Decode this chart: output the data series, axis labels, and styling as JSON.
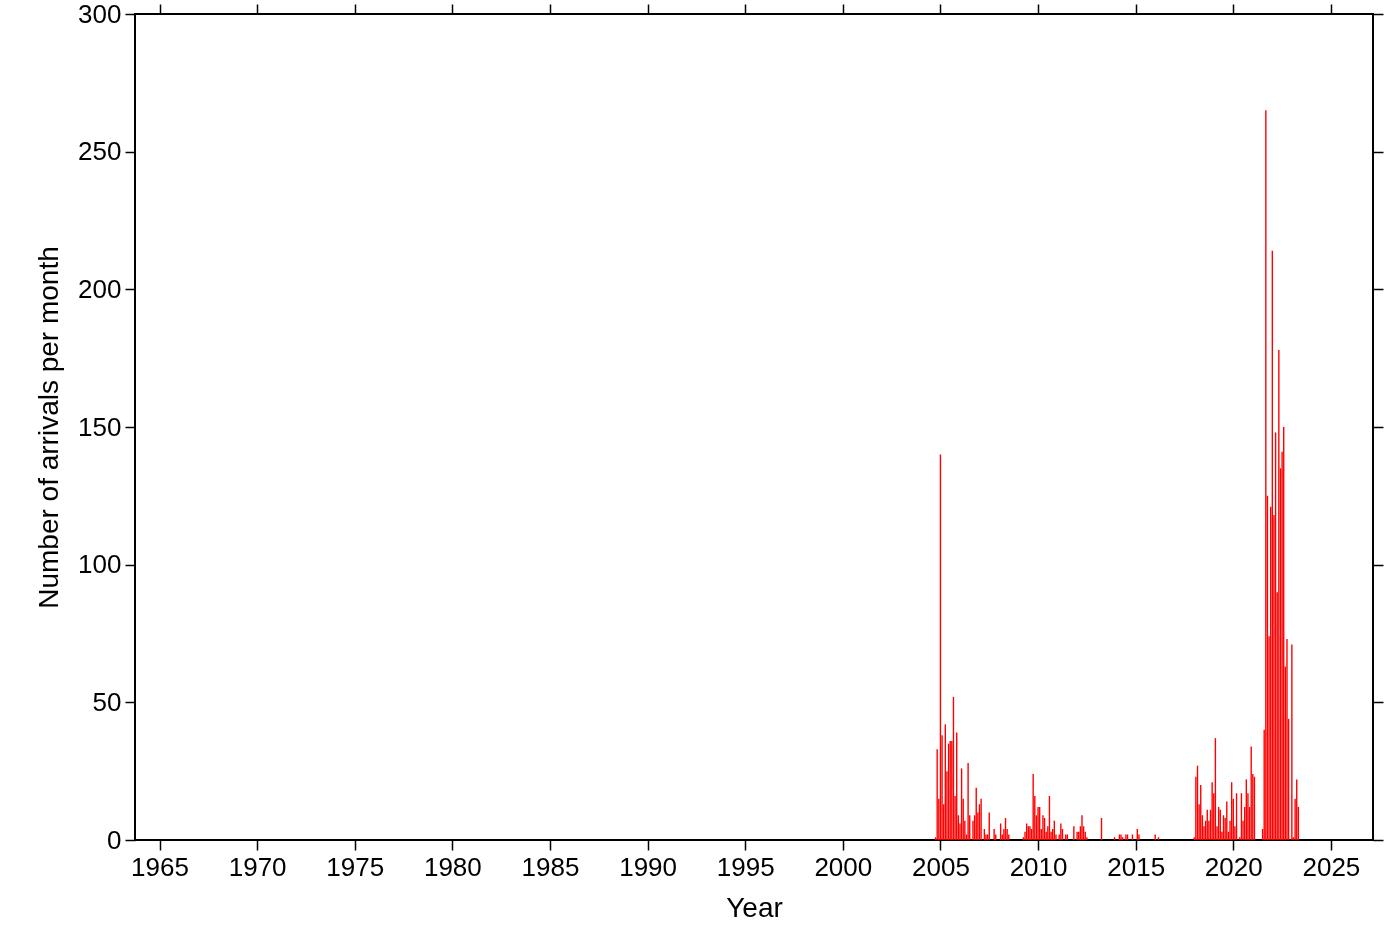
{
  "chart_data": {
    "type": "bar",
    "xlabel": "Year",
    "ylabel": "Number of arrivals per month",
    "color": "#ff0000",
    "x": [
      2004.75,
      2004.833,
      2004.917,
      2005.0,
      2005.083,
      2005.167,
      2005.25,
      2005.333,
      2005.417,
      2005.5,
      2005.583,
      2005.667,
      2005.75,
      2005.833,
      2005.917,
      2006.0,
      2006.083,
      2006.167,
      2006.25,
      2006.333,
      2006.417,
      2006.5,
      2006.667,
      2006.75,
      2006.833,
      2006.917,
      2007.0,
      2007.083,
      2007.25,
      2007.333,
      2007.417,
      2007.5,
      2007.75,
      2007.833,
      2008.083,
      2008.167,
      2008.25,
      2008.333,
      2008.417,
      2008.5,
      2009.25,
      2009.333,
      2009.417,
      2009.5,
      2009.583,
      2009.667,
      2009.75,
      2009.833,
      2009.917,
      2010.0,
      2010.083,
      2010.167,
      2010.25,
      2010.333,
      2010.417,
      2010.5,
      2010.583,
      2010.667,
      2010.75,
      2010.833,
      2010.917,
      2011.083,
      2011.167,
      2011.25,
      2011.417,
      2011.5,
      2011.833,
      2012.0,
      2012.083,
      2012.167,
      2012.25,
      2012.333,
      2012.417,
      2012.5,
      2013.25,
      2013.917,
      2014.167,
      2014.25,
      2014.333,
      2014.5,
      2014.583,
      2014.833,
      2015.083,
      2015.167,
      2016.0,
      2016.167,
      2018.0,
      2018.083,
      2018.167,
      2018.25,
      2018.333,
      2018.417,
      2018.5,
      2018.583,
      2018.667,
      2018.75,
      2018.833,
      2018.917,
      2019.0,
      2019.083,
      2019.167,
      2019.25,
      2019.333,
      2019.417,
      2019.5,
      2019.583,
      2019.667,
      2019.75,
      2019.833,
      2019.917,
      2020.0,
      2020.083,
      2020.167,
      2020.333,
      2020.417,
      2020.5,
      2020.583,
      2020.667,
      2020.75,
      2020.833,
      2020.917,
      2021.0,
      2021.083,
      2021.5,
      2021.583,
      2021.667,
      2021.75,
      2021.833,
      2021.917,
      2022.0,
      2022.083,
      2022.167,
      2022.25,
      2022.333,
      2022.417,
      2022.5,
      2022.583,
      2022.667,
      2022.75,
      2022.833,
      2023.0,
      2023.083,
      2023.167,
      2023.25,
      2023.333
    ],
    "values": [
      1,
      33,
      15,
      140,
      38,
      13,
      42,
      25,
      35,
      36,
      36,
      52,
      16,
      39,
      9,
      6,
      26,
      15,
      7,
      2,
      28,
      9,
      7,
      9,
      19,
      10,
      13,
      15,
      4,
      2,
      2,
      10,
      4,
      2,
      6,
      2,
      4,
      8,
      4,
      2,
      1,
      3,
      6,
      5,
      5,
      4,
      24,
      16,
      9,
      12,
      12,
      4,
      9,
      8,
      3,
      5,
      16,
      3,
      4,
      7,
      2,
      2,
      6,
      4,
      2,
      2,
      5,
      3,
      3,
      5,
      9,
      5,
      3,
      1,
      8,
      1,
      2,
      2,
      1,
      2,
      2,
      2,
      4,
      2,
      2,
      1,
      1,
      23,
      27,
      13,
      20,
      9,
      5,
      7,
      11,
      7,
      11,
      21,
      17,
      37,
      5,
      12,
      11,
      3,
      9,
      8,
      14,
      3,
      7,
      21,
      15,
      5,
      17,
      1,
      17,
      7,
      12,
      22,
      17,
      12,
      34,
      24,
      23,
      4,
      40,
      265,
      125,
      74,
      121,
      214,
      118,
      148,
      90,
      178,
      135,
      141,
      150,
      63,
      73,
      44,
      71,
      1,
      15,
      22,
      12
    ],
    "xlim": [
      1964,
      2026.9
    ],
    "xticks": [
      1965,
      1970,
      1975,
      1980,
      1985,
      1990,
      1995,
      2000,
      2005,
      2010,
      2015,
      2020,
      2025
    ],
    "ylim": [
      0,
      300
    ],
    "yticks": [
      0,
      50,
      100,
      150,
      200,
      250,
      300
    ],
    "grid": false
  }
}
